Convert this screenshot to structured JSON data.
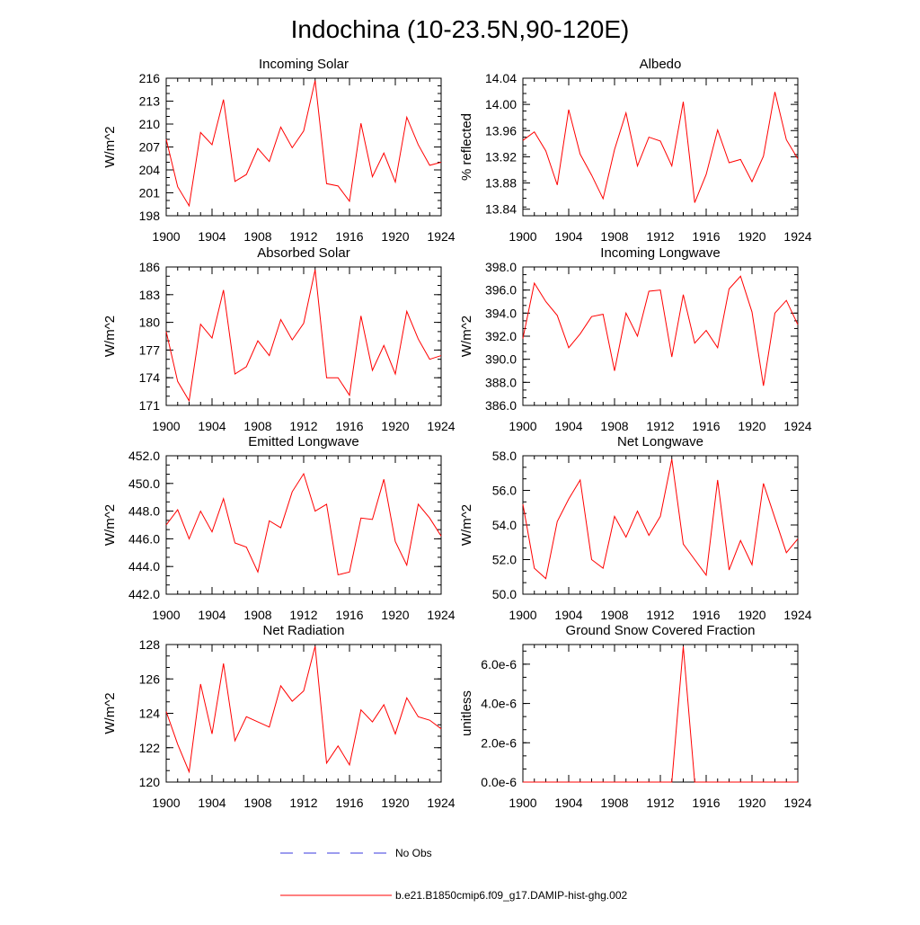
{
  "figure": {
    "title": "Indochina (10-23.5N,90-120E)"
  },
  "legend": [
    {
      "label": "No Obs",
      "color": "#3a3adf",
      "style": "dashed"
    },
    {
      "label": "b.e21.B1850cmip6.f09_g17.DAMIP-hist-ghg.002",
      "color": "#ff0000",
      "style": "solid"
    }
  ],
  "chart_data": [
    {
      "type": "line",
      "title": "Incoming Solar",
      "ylabel": "W/m^2",
      "xlim": [
        1900,
        1924
      ],
      "ylim": [
        198,
        216
      ],
      "xticks": [
        1900,
        1904,
        1908,
        1912,
        1916,
        1920,
        1924
      ],
      "yticks": [
        198,
        201,
        204,
        207,
        210,
        213,
        216
      ],
      "ytick_labels": [
        "198",
        "201",
        "204",
        "207",
        "210",
        "213",
        "216"
      ],
      "x": [
        1900,
        1901,
        1902,
        1903,
        1904,
        1905,
        1906,
        1907,
        1908,
        1909,
        1910,
        1911,
        1912,
        1913,
        1914,
        1915,
        1916,
        1917,
        1918,
        1919,
        1920,
        1921,
        1922,
        1923,
        1924
      ],
      "series": [
        {
          "color": "#ff0000",
          "values": [
            208.0,
            201.8,
            199.3,
            208.9,
            207.3,
            213.2,
            202.5,
            203.4,
            206.8,
            205.1,
            209.6,
            206.9,
            209.1,
            215.7,
            202.2,
            201.9,
            199.9,
            210.1,
            203.1,
            206.2,
            202.4,
            210.9,
            207.3,
            204.6,
            205.0
          ]
        }
      ]
    },
    {
      "type": "line",
      "title": "Albedo",
      "ylabel": "% reflected",
      "xlim": [
        1900,
        1924
      ],
      "ylim": [
        13.83,
        14.04
      ],
      "xticks": [
        1900,
        1904,
        1908,
        1912,
        1916,
        1920,
        1924
      ],
      "yticks": [
        13.84,
        13.88,
        13.92,
        13.96,
        14.0,
        14.04
      ],
      "ytick_labels": [
        "13.84",
        "13.88",
        "13.92",
        "13.96",
        "14.00",
        "14.04"
      ],
      "x": [
        1900,
        1901,
        1902,
        1903,
        1904,
        1905,
        1906,
        1907,
        1908,
        1909,
        1910,
        1911,
        1912,
        1913,
        1914,
        1915,
        1916,
        1917,
        1918,
        1919,
        1920,
        1921,
        1922,
        1923,
        1924
      ],
      "series": [
        {
          "color": "#ff0000",
          "values": [
            13.945,
            13.958,
            13.929,
            13.877,
            13.992,
            13.924,
            13.892,
            13.856,
            13.931,
            13.987,
            13.906,
            13.95,
            13.944,
            13.906,
            14.004,
            13.85,
            13.893,
            13.961,
            13.911,
            13.916,
            13.882,
            13.921,
            14.019,
            13.946,
            13.917
          ]
        }
      ]
    },
    {
      "type": "line",
      "title": "Absorbed Solar",
      "ylabel": "W/m^2",
      "xlim": [
        1900,
        1924
      ],
      "ylim": [
        171,
        186
      ],
      "xticks": [
        1900,
        1904,
        1908,
        1912,
        1916,
        1920,
        1924
      ],
      "yticks": [
        171,
        174,
        177,
        180,
        183,
        186
      ],
      "ytick_labels": [
        "171",
        "174",
        "177",
        "180",
        "183",
        "186"
      ],
      "x": [
        1900,
        1901,
        1902,
        1903,
        1904,
        1905,
        1906,
        1907,
        1908,
        1909,
        1910,
        1911,
        1912,
        1913,
        1914,
        1915,
        1916,
        1917,
        1918,
        1919,
        1920,
        1921,
        1922,
        1923,
        1924
      ],
      "series": [
        {
          "color": "#ff0000",
          "values": [
            179.0,
            173.6,
            171.5,
            179.8,
            178.3,
            183.5,
            174.4,
            175.2,
            178.0,
            176.4,
            180.3,
            178.1,
            179.9,
            185.7,
            174.0,
            174.0,
            172.1,
            180.7,
            174.8,
            177.5,
            174.4,
            181.2,
            178.2,
            176.0,
            176.4
          ]
        }
      ]
    },
    {
      "type": "line",
      "title": "Incoming Longwave",
      "ylabel": "W/m^2",
      "xlim": [
        1900,
        1924
      ],
      "ylim": [
        386.0,
        398.0
      ],
      "xticks": [
        1900,
        1904,
        1908,
        1912,
        1916,
        1920,
        1924
      ],
      "yticks": [
        386.0,
        388.0,
        390.0,
        392.0,
        394.0,
        396.0,
        398.0
      ],
      "ytick_labels": [
        "386.0",
        "388.0",
        "390.0",
        "392.0",
        "394.0",
        "396.0",
        "398.0"
      ],
      "x": [
        1900,
        1901,
        1902,
        1903,
        1904,
        1905,
        1906,
        1907,
        1908,
        1909,
        1910,
        1911,
        1912,
        1913,
        1914,
        1915,
        1916,
        1917,
        1918,
        1919,
        1920,
        1921,
        1922,
        1923,
        1924
      ],
      "series": [
        {
          "color": "#ff0000",
          "values": [
            391.8,
            396.6,
            395.0,
            393.8,
            391.0,
            392.2,
            393.7,
            393.9,
            389.0,
            394.0,
            392.0,
            395.9,
            396.0,
            390.2,
            395.6,
            391.4,
            392.5,
            391.0,
            396.1,
            397.2,
            394.1,
            387.7,
            394.0,
            395.1,
            393.0
          ]
        }
      ]
    },
    {
      "type": "line",
      "title": "Emitted Longwave",
      "ylabel": "W/m^2",
      "xlim": [
        1900,
        1924
      ],
      "ylim": [
        442.0,
        452.0
      ],
      "xticks": [
        1900,
        1904,
        1908,
        1912,
        1916,
        1920,
        1924
      ],
      "yticks": [
        442.0,
        444.0,
        446.0,
        448.0,
        450.0,
        452.0
      ],
      "ytick_labels": [
        "442.0",
        "444.0",
        "446.0",
        "448.0",
        "450.0",
        "452.0"
      ],
      "x": [
        1900,
        1901,
        1902,
        1903,
        1904,
        1905,
        1906,
        1907,
        1908,
        1909,
        1910,
        1911,
        1912,
        1913,
        1914,
        1915,
        1916,
        1917,
        1918,
        1919,
        1920,
        1921,
        1922,
        1923,
        1924
      ],
      "series": [
        {
          "color": "#ff0000",
          "values": [
            447.0,
            448.1,
            446.0,
            448.0,
            446.5,
            448.9,
            445.7,
            445.4,
            443.6,
            447.3,
            446.8,
            449.4,
            450.7,
            448.0,
            448.5,
            443.4,
            443.6,
            447.5,
            447.4,
            450.3,
            445.8,
            444.1,
            448.5,
            447.5,
            446.2
          ]
        }
      ]
    },
    {
      "type": "line",
      "title": "Net Longwave",
      "ylabel": "W/m^2",
      "xlim": [
        1900,
        1924
      ],
      "ylim": [
        50.0,
        58.0
      ],
      "xticks": [
        1900,
        1904,
        1908,
        1912,
        1916,
        1920,
        1924
      ],
      "yticks": [
        50.0,
        52.0,
        54.0,
        56.0,
        58.0
      ],
      "ytick_labels": [
        "50.0",
        "52.0",
        "54.0",
        "56.0",
        "58.0"
      ],
      "x": [
        1900,
        1901,
        1902,
        1903,
        1904,
        1905,
        1906,
        1907,
        1908,
        1909,
        1910,
        1911,
        1912,
        1913,
        1914,
        1915,
        1916,
        1917,
        1918,
        1919,
        1920,
        1921,
        1922,
        1923,
        1924
      ],
      "series": [
        {
          "color": "#ff0000",
          "values": [
            55.2,
            51.5,
            50.9,
            54.2,
            55.5,
            56.6,
            52.0,
            51.5,
            54.5,
            53.3,
            54.8,
            53.4,
            54.5,
            57.8,
            52.9,
            52.0,
            51.1,
            56.6,
            51.4,
            53.1,
            51.7,
            56.4,
            54.4,
            52.4,
            53.2
          ]
        }
      ]
    },
    {
      "type": "line",
      "title": "Net Radiation",
      "ylabel": "W/m^2",
      "xlim": [
        1900,
        1924
      ],
      "ylim": [
        120,
        128
      ],
      "xticks": [
        1900,
        1904,
        1908,
        1912,
        1916,
        1920,
        1924
      ],
      "yticks": [
        120,
        122,
        124,
        126,
        128
      ],
      "ytick_labels": [
        "120",
        "122",
        "124",
        "126",
        "128"
      ],
      "x": [
        1900,
        1901,
        1902,
        1903,
        1904,
        1905,
        1906,
        1907,
        1908,
        1909,
        1910,
        1911,
        1912,
        1913,
        1914,
        1915,
        1916,
        1917,
        1918,
        1919,
        1920,
        1921,
        1922,
        1923,
        1924
      ],
      "series": [
        {
          "color": "#ff0000",
          "values": [
            124.1,
            122.2,
            120.6,
            125.7,
            122.8,
            126.9,
            122.4,
            123.8,
            123.5,
            123.2,
            125.6,
            124.7,
            125.3,
            127.9,
            121.1,
            122.1,
            121.0,
            124.2,
            123.5,
            124.5,
            122.8,
            124.9,
            123.8,
            123.6,
            123.1
          ]
        }
      ]
    },
    {
      "type": "line",
      "title": "Ground Snow Covered Fraction",
      "ylabel": "unitless",
      "xlim": [
        1900,
        1924
      ],
      "ylim": [
        0,
        7e-06
      ],
      "xticks": [
        1900,
        1904,
        1908,
        1912,
        1916,
        1920,
        1924
      ],
      "yticks": [
        0,
        2e-06,
        4e-06,
        6e-06
      ],
      "ytick_labels": [
        "0.0e-6",
        "2.0e-6",
        "4.0e-6",
        "6.0e-6"
      ],
      "x": [
        1900,
        1901,
        1902,
        1903,
        1904,
        1905,
        1906,
        1907,
        1908,
        1909,
        1910,
        1911,
        1912,
        1913,
        1914,
        1915,
        1916,
        1917,
        1918,
        1919,
        1920,
        1921,
        1922,
        1923,
        1924
      ],
      "series": [
        {
          "color": "#ff0000",
          "values": [
            0,
            0,
            0,
            0,
            0,
            0,
            0,
            0,
            0,
            0,
            0,
            0,
            0,
            0,
            6.9e-06,
            0,
            0,
            0,
            0,
            0,
            0,
            0,
            0,
            0,
            0
          ]
        }
      ]
    }
  ]
}
